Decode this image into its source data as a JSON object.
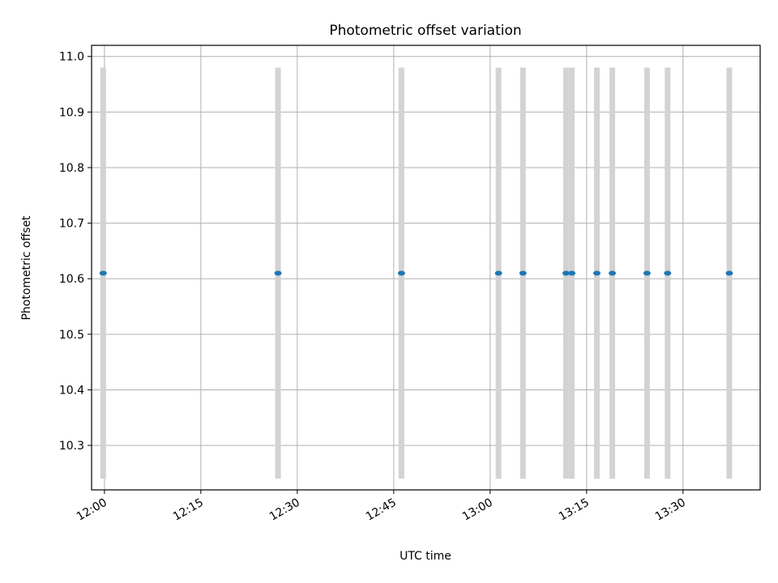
{
  "chart_data": {
    "type": "scatter",
    "title": "Photometric offset variation",
    "xlabel": "UTC time",
    "ylabel": "Photometric offset",
    "grid": true,
    "x_axis": "time",
    "xlim": [
      "11:58",
      "13:42"
    ],
    "ylim": [
      10.22,
      11.02
    ],
    "x_ticks": [
      "12:00",
      "12:15",
      "12:30",
      "12:45",
      "13:00",
      "13:15",
      "13:30"
    ],
    "y_ticks": [
      "10.3",
      "10.4",
      "10.5",
      "10.6",
      "10.7",
      "10.8",
      "10.9",
      "11.0"
    ],
    "colors": {
      "points": "#1f77b4",
      "error_bars": "#d3d3d3",
      "grid": "#b0b0b0"
    },
    "series": [
      {
        "x": [
          "11:59.8",
          "12:27.0",
          "12:46.2",
          "13:01.3",
          "13:05.1",
          "13:11.8",
          "13:12.7",
          "13:16.6",
          "13:19.0",
          "13:24.4",
          "13:27.6",
          "13:37.2"
        ],
        "y": [
          10.61,
          10.61,
          10.61,
          10.61,
          10.61,
          10.61,
          10.61,
          10.61,
          10.61,
          10.61,
          10.61,
          10.61
        ],
        "error_low": [
          10.24,
          10.24,
          10.24,
          10.24,
          10.24,
          10.24,
          10.24,
          10.24,
          10.24,
          10.24,
          10.24,
          10.24
        ],
        "error_high": [
          10.98,
          10.98,
          10.98,
          10.98,
          10.98,
          10.98,
          10.98,
          10.98,
          10.98,
          10.98,
          10.98,
          10.98
        ]
      }
    ]
  }
}
